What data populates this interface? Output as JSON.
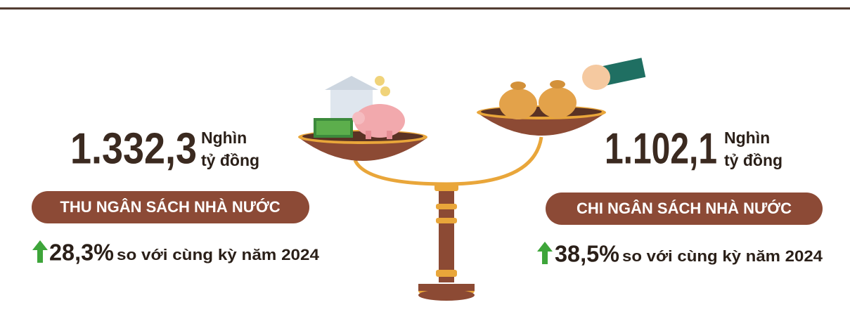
{
  "left": {
    "value": "1.332,3",
    "unit_line1": "Nghìn",
    "unit_line2": "tỷ đồng",
    "label": "THU NGÂN SÁCH NHÀ NƯỚC",
    "change": "28,3%",
    "comparison": "so với cùng kỳ năm 2024"
  },
  "right": {
    "value": "1.102,1",
    "unit_line1": "Nghìn",
    "unit_line2": "tỷ đồng",
    "label": "CHI NGÂN SÁCH NHÀ NƯỚC",
    "change": "38,5%",
    "comparison": "so với cùng kỳ năm 2024"
  }
}
